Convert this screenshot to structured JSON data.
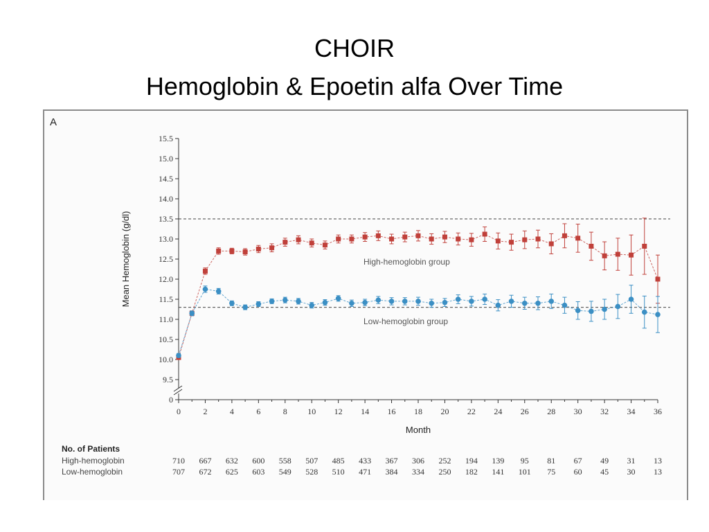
{
  "slide": {
    "title_line1": "CHOIR",
    "title_line2": "Hemoglobin & Epoetin alfa Over Time"
  },
  "panel_label": "A",
  "colors": {
    "high": "#c0403a",
    "low": "#3b8fc4",
    "ref": "#666666",
    "axis": "#333333"
  },
  "chart_data": {
    "type": "line",
    "title": "",
    "xlabel": "Month",
    "ylabel": "Mean Hemoglobin (g/dl)",
    "xlim": [
      0,
      36
    ],
    "ylim": [
      9.5,
      15.5
    ],
    "y_axis_break": true,
    "y_ticks": [
      "15.5",
      "15.0",
      "14.5",
      "14.0",
      "13.5",
      "13.0",
      "12.5",
      "12.0",
      "11.5",
      "11.0",
      "10.5",
      "10.0",
      "9.5",
      "0"
    ],
    "x_ticks": [
      "0",
      "2",
      "4",
      "6",
      "8",
      "10",
      "12",
      "14",
      "16",
      "18",
      "20",
      "22",
      "24",
      "26",
      "28",
      "30",
      "32",
      "34",
      "36"
    ],
    "reference_lines": [
      13.5,
      11.3
    ],
    "series": [
      {
        "name": "High-hemoglobin group",
        "marker": "square",
        "x": [
          0,
          1,
          2,
          3,
          4,
          5,
          6,
          7,
          8,
          9,
          10,
          11,
          12,
          13,
          14,
          15,
          16,
          17,
          18,
          19,
          20,
          21,
          22,
          23,
          24,
          25,
          26,
          27,
          28,
          29,
          30,
          31,
          32,
          33,
          34,
          35,
          36
        ],
        "y": [
          10.05,
          11.15,
          12.2,
          12.7,
          12.7,
          12.68,
          12.75,
          12.78,
          12.92,
          12.98,
          12.9,
          12.85,
          13.0,
          13.0,
          13.05,
          13.08,
          13.0,
          13.05,
          13.08,
          13.0,
          13.05,
          13.0,
          12.98,
          13.12,
          12.95,
          12.92,
          12.98,
          13.0,
          12.88,
          13.08,
          13.02,
          12.82,
          12.58,
          12.62,
          12.6,
          12.82,
          12.0
        ],
        "err": [
          0.05,
          0.06,
          0.08,
          0.08,
          0.07,
          0.08,
          0.09,
          0.1,
          0.1,
          0.1,
          0.1,
          0.1,
          0.1,
          0.1,
          0.11,
          0.12,
          0.12,
          0.12,
          0.13,
          0.13,
          0.14,
          0.15,
          0.16,
          0.18,
          0.2,
          0.2,
          0.22,
          0.22,
          0.25,
          0.3,
          0.35,
          0.35,
          0.35,
          0.4,
          0.5,
          0.7,
          0.6
        ]
      },
      {
        "name": "Low-hemoglobin group",
        "marker": "circle",
        "x": [
          0,
          1,
          2,
          3,
          4,
          5,
          6,
          7,
          8,
          9,
          10,
          11,
          12,
          13,
          14,
          15,
          16,
          17,
          18,
          19,
          20,
          21,
          22,
          23,
          24,
          25,
          26,
          27,
          28,
          29,
          30,
          31,
          32,
          33,
          34,
          35,
          36
        ],
        "y": [
          10.1,
          11.15,
          11.75,
          11.7,
          11.4,
          11.3,
          11.38,
          11.45,
          11.48,
          11.45,
          11.35,
          11.42,
          11.52,
          11.4,
          11.42,
          11.48,
          11.45,
          11.45,
          11.45,
          11.4,
          11.42,
          11.5,
          11.45,
          11.5,
          11.35,
          11.45,
          11.4,
          11.4,
          11.45,
          11.35,
          11.22,
          11.2,
          11.25,
          11.32,
          11.5,
          11.18,
          11.12
        ],
        "err": [
          0.05,
          0.06,
          0.08,
          0.07,
          0.06,
          0.06,
          0.06,
          0.06,
          0.07,
          0.07,
          0.07,
          0.07,
          0.07,
          0.08,
          0.08,
          0.09,
          0.09,
          0.09,
          0.1,
          0.1,
          0.1,
          0.11,
          0.12,
          0.13,
          0.14,
          0.15,
          0.15,
          0.16,
          0.18,
          0.2,
          0.22,
          0.25,
          0.25,
          0.3,
          0.35,
          0.4,
          0.45
        ]
      }
    ],
    "series_labels": [
      "High-hemoglobin group",
      "Low-hemoglobin group"
    ]
  },
  "patients_table": {
    "heading": "No. of Patients",
    "rows": [
      {
        "label": "High-hemoglobin",
        "values": [
          "710",
          "667",
          "632",
          "600",
          "558",
          "507",
          "485",
          "433",
          "367",
          "306",
          "252",
          "194",
          "139",
          "95",
          "81",
          "67",
          "49",
          "31",
          "13"
        ]
      },
      {
        "label": "Low-hemoglobin",
        "values": [
          "707",
          "672",
          "625",
          "603",
          "549",
          "528",
          "510",
          "471",
          "384",
          "334",
          "250",
          "182",
          "141",
          "101",
          "75",
          "60",
          "45",
          "30",
          "13"
        ]
      }
    ]
  }
}
